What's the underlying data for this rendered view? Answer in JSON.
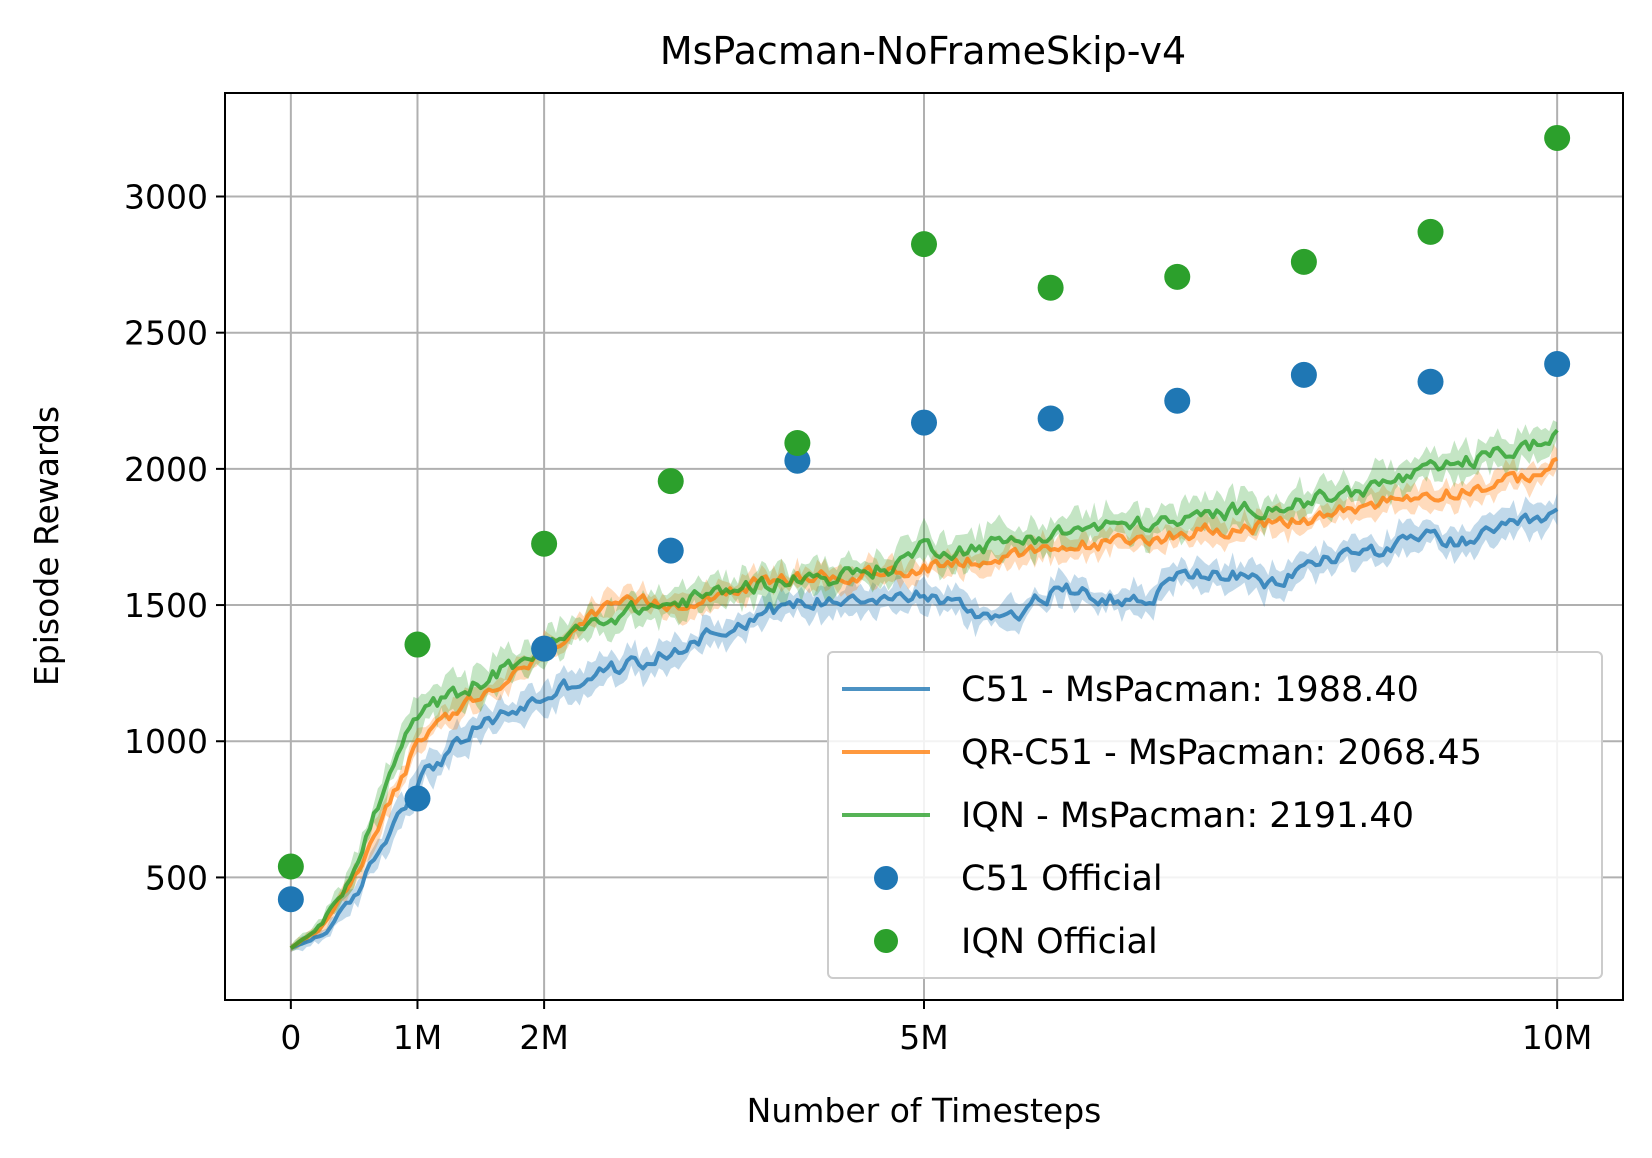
{
  "chart_data": {
    "type": "line",
    "title": "MsPacman-NoFrameSkip-v4",
    "xlabel": "Number of Timesteps",
    "ylabel": "Episode Rewards",
    "xlim": [
      -520000,
      10520000
    ],
    "ylim": [
      50,
      3380
    ],
    "grid": true,
    "legend_position": "lower-right",
    "xticks": [
      {
        "value": 0,
        "label": "0"
      },
      {
        "value": 1000000,
        "label": "1M"
      },
      {
        "value": 2000000,
        "label": "2M"
      },
      {
        "value": 5000000,
        "label": "5M"
      },
      {
        "value": 10000000,
        "label": "10M"
      }
    ],
    "yticks": [
      {
        "value": 500,
        "label": "500"
      },
      {
        "value": 1000,
        "label": "1000"
      },
      {
        "value": 1500,
        "label": "1500"
      },
      {
        "value": 2000,
        "label": "2000"
      },
      {
        "value": 2500,
        "label": "2500"
      },
      {
        "value": 3000,
        "label": "3000"
      }
    ],
    "series": [
      {
        "name": "C51",
        "label": "C51 - MsPacman: 1988.40",
        "color": "#1f77b4",
        "x": [
          0,
          250000,
          500000,
          750000,
          1000000,
          1250000,
          1500000,
          1750000,
          2000000,
          2250000,
          2500000,
          2750000,
          3000000,
          3250000,
          3500000,
          3750000,
          4000000,
          4250000,
          4500000,
          4750000,
          5000000,
          5250000,
          5500000,
          5750000,
          6000000,
          6250000,
          6500000,
          6750000,
          7000000,
          7250000,
          7500000,
          7750000,
          8000000,
          8250000,
          8500000,
          8750000,
          9000000,
          9250000,
          9500000,
          9750000,
          10000000
        ],
        "y": [
          240,
          290,
          420,
          650,
          860,
          960,
          1060,
          1110,
          1160,
          1220,
          1260,
          1290,
          1320,
          1390,
          1420,
          1480,
          1500,
          1520,
          1540,
          1520,
          1540,
          1500,
          1460,
          1480,
          1540,
          1560,
          1520,
          1510,
          1600,
          1620,
          1600,
          1570,
          1640,
          1680,
          1700,
          1720,
          1750,
          1730,
          1760,
          1800,
          1830
        ],
        "noise": 45,
        "band": 60
      },
      {
        "name": "QR-C51",
        "label": "QR-C51 - MsPacman: 2068.45",
        "color": "#ff7f0e",
        "x": [
          0,
          250000,
          500000,
          750000,
          1000000,
          1250000,
          1500000,
          1750000,
          2000000,
          2250000,
          2500000,
          2750000,
          3000000,
          3250000,
          3500000,
          3750000,
          4000000,
          4250000,
          4500000,
          4750000,
          5000000,
          5250000,
          5500000,
          5750000,
          6000000,
          6250000,
          6500000,
          6750000,
          7000000,
          7250000,
          7500000,
          7750000,
          8000000,
          8250000,
          8500000,
          8750000,
          9000000,
          9250000,
          9500000,
          9750000,
          10000000
        ],
        "y": [
          240,
          320,
          500,
          760,
          980,
          1090,
          1160,
          1230,
          1330,
          1420,
          1480,
          1510,
          1500,
          1530,
          1560,
          1580,
          1600,
          1600,
          1610,
          1620,
          1640,
          1660,
          1670,
          1680,
          1700,
          1720,
          1730,
          1740,
          1760,
          1780,
          1780,
          1790,
          1810,
          1840,
          1870,
          1890,
          1910,
          1920,
          1940,
          1970,
          2020
        ],
        "noise": 40,
        "band": 50
      },
      {
        "name": "IQN",
        "label": "IQN - MsPacman: 2191.40",
        "color": "#2ca02c",
        "x": [
          0,
          250000,
          500000,
          750000,
          1000000,
          1250000,
          1500000,
          1750000,
          2000000,
          2250000,
          2500000,
          2750000,
          3000000,
          3250000,
          3500000,
          3750000,
          4000000,
          4250000,
          4500000,
          4750000,
          5000000,
          5250000,
          5500000,
          5750000,
          6000000,
          6250000,
          6500000,
          6750000,
          7000000,
          7250000,
          7500000,
          7750000,
          8000000,
          8250000,
          8500000,
          8750000,
          9000000,
          9250000,
          9500000,
          9750000,
          10000000
        ],
        "y": [
          240,
          330,
          520,
          840,
          1100,
          1160,
          1220,
          1280,
          1340,
          1400,
          1450,
          1490,
          1500,
          1530,
          1560,
          1580,
          1600,
          1600,
          1620,
          1640,
          1720,
          1700,
          1720,
          1740,
          1760,
          1780,
          1790,
          1800,
          1800,
          1830,
          1850,
          1860,
          1880,
          1900,
          1930,
          1960,
          1990,
          2020,
          2050,
          2080,
          2110
        ],
        "noise": 45,
        "band": 70
      }
    ],
    "scatter_series": [
      {
        "name": "C51 Official",
        "label": "C51 Official",
        "color": "#1f77b4",
        "x": [
          0,
          1000000,
          2000000,
          3000000,
          4000000,
          5000000,
          6000000,
          7000000,
          8000000,
          9000000,
          10000000
        ],
        "y": [
          420,
          790,
          1340,
          1700,
          2030,
          2170,
          2185,
          2250,
          2345,
          2320,
          2385
        ]
      },
      {
        "name": "IQN Official",
        "label": "IQN Official",
        "color": "#2ca02c",
        "x": [
          0,
          1000000,
          2000000,
          3000000,
          4000000,
          5000000,
          6000000,
          7000000,
          8000000,
          9000000,
          10000000
        ],
        "y": [
          540,
          1355,
          1725,
          1955,
          2095,
          2825,
          2665,
          2705,
          2760,
          2870,
          3215
        ]
      }
    ]
  }
}
